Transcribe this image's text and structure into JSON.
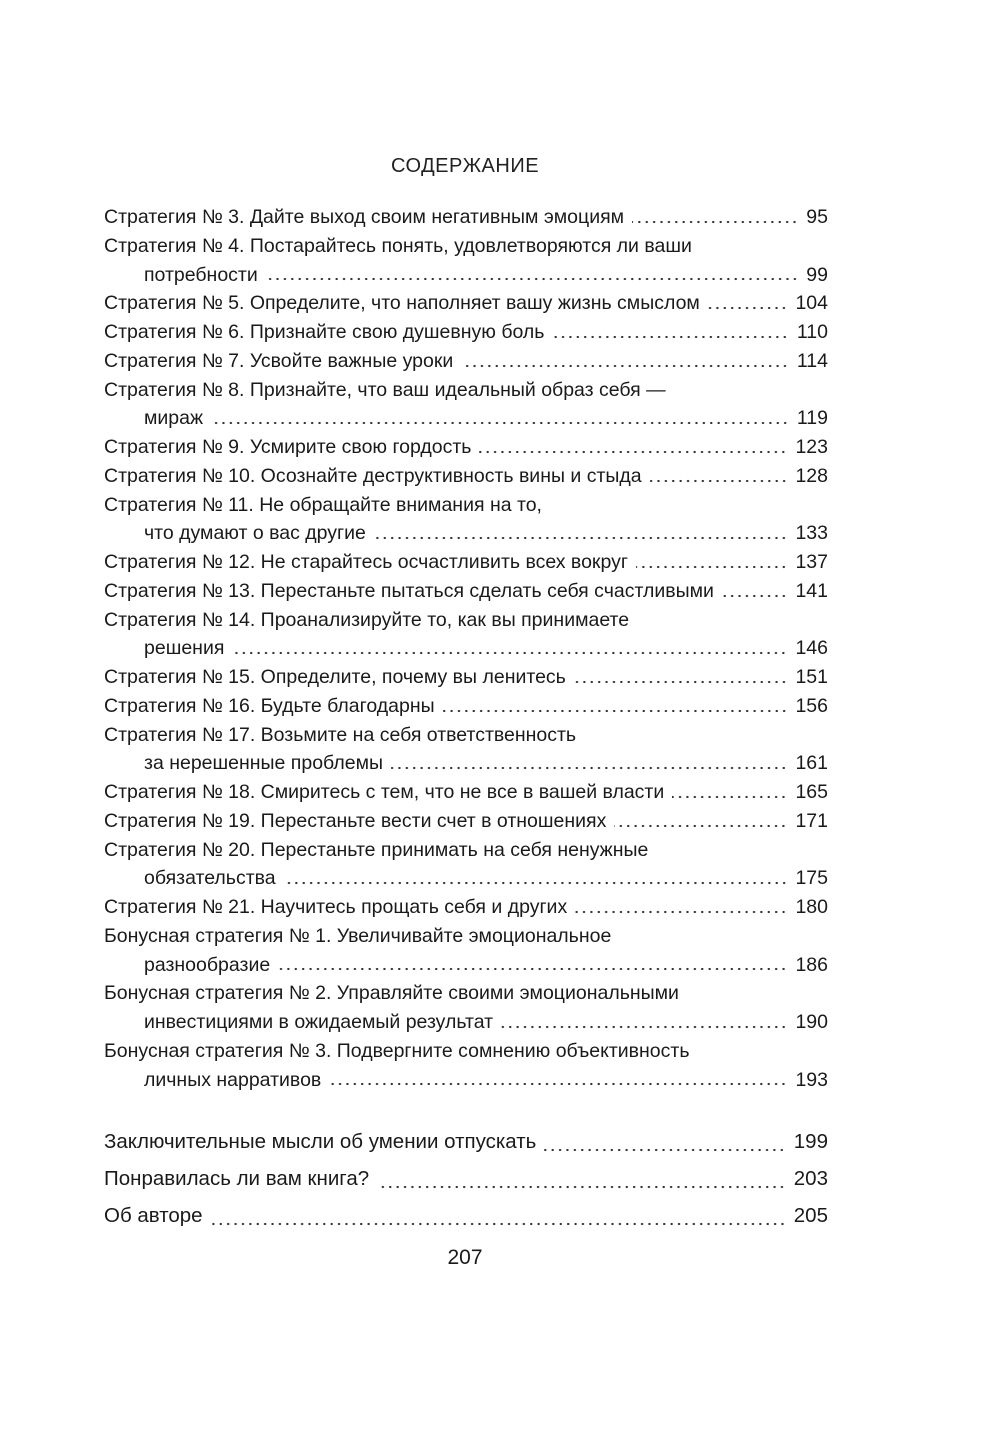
{
  "header": {
    "title": "СОДЕРЖАНИЕ"
  },
  "entries": [
    {
      "lines": [
        "Стратегия № 3. Дайте выход своим негативным эмоциям"
      ],
      "page": "95"
    },
    {
      "lines": [
        "Стратегия № 4. Постарайтесь понять, удовлетворяются ли ваши",
        "потребности"
      ],
      "page": "99"
    },
    {
      "lines": [
        "Стратегия № 5. Определите, что наполняет вашу жизнь смыслом"
      ],
      "page": "104"
    },
    {
      "lines": [
        "Стратегия № 6. Признайте свою душевную боль"
      ],
      "page": "110"
    },
    {
      "lines": [
        "Стратегия № 7. Усвойте важные уроки"
      ],
      "page": "114"
    },
    {
      "lines": [
        "Стратегия № 8. Признайте, что ваш идеальный образ себя —",
        "мираж"
      ],
      "page": "119"
    },
    {
      "lines": [
        "Стратегия № 9. Усмирите свою гордость"
      ],
      "page": "123"
    },
    {
      "lines": [
        "Стратегия № 10. Осознайте деструктивность вины и стыда"
      ],
      "page": "128"
    },
    {
      "lines": [
        "Стратегия № 11. Не обращайте внимания на то,",
        "что думают о вас другие"
      ],
      "page": "133"
    },
    {
      "lines": [
        "Стратегия № 12. Не старайтесь осчастливить всех вокруг"
      ],
      "page": "137"
    },
    {
      "lines": [
        "Стратегия № 13. Перестаньте пытаться сделать себя счастливыми"
      ],
      "page": "141"
    },
    {
      "lines": [
        "Стратегия № 14. Проанализируйте то, как вы принимаете",
        "решения"
      ],
      "page": "146"
    },
    {
      "lines": [
        "Стратегия № 15. Определите, почему вы ленитесь"
      ],
      "page": "151"
    },
    {
      "lines": [
        "Стратегия № 16. Будьте благодарны"
      ],
      "page": "156"
    },
    {
      "lines": [
        "Стратегия № 17. Возьмите на себя ответственность",
        "за нерешенные проблемы"
      ],
      "page": "161"
    },
    {
      "lines": [
        "Стратегия № 18. Смиритесь с тем, что не все в вашей власти"
      ],
      "page": "165"
    },
    {
      "lines": [
        "Стратегия № 19. Перестаньте вести счет в отношениях"
      ],
      "page": "171"
    },
    {
      "lines": [
        "Стратегия № 20. Перестаньте принимать на себя ненужные",
        "обязательства"
      ],
      "page": "175"
    },
    {
      "lines": [
        "Стратегия № 21. Научитесь прощать себя и других"
      ],
      "page": "180"
    },
    {
      "lines": [
        "Бонусная стратегия № 1. Увеличивайте эмоциональное",
        "разнообразие"
      ],
      "page": "186"
    },
    {
      "lines": [
        "Бонусная стратегия № 2. Управляйте своими эмоциональными",
        "инвестициями в ожидаемый результат"
      ],
      "page": "190"
    },
    {
      "lines": [
        "Бонусная стратегия № 3. Подвергните сомнению объективность",
        "личных нарративов"
      ],
      "page": "193"
    }
  ],
  "final_entries": [
    {
      "lines": [
        "Заключительные мысли об умении отпускать"
      ],
      "page": "199"
    },
    {
      "lines": [
        "Понравилась ли вам книга?"
      ],
      "page": "203"
    },
    {
      "lines": [
        "Об авторе"
      ],
      "page": "205"
    }
  ],
  "footer": {
    "page_number": "207"
  }
}
